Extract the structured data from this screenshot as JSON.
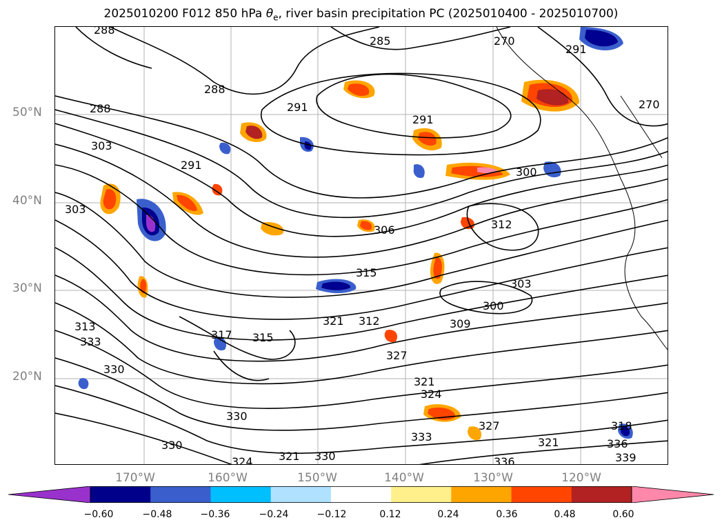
{
  "title": {
    "prefix": "2025010200 F012 850 hPa ",
    "symbol": "θ",
    "subscript": "e",
    "suffix": ", river basin precipitation PC (2025010400 - 2025010700)"
  },
  "map": {
    "lat_labels": [
      "50°N",
      "40°N",
      "30°N",
      "20°N"
    ],
    "lon_labels": [
      "170°W",
      "160°W",
      "150°W",
      "140°W",
      "130°W",
      "120°W"
    ],
    "contour_labels": [
      "288",
      "285",
      "270",
      "288",
      "291",
      "291",
      "270",
      "288",
      "291",
      "300",
      "303",
      "303",
      "291",
      "306",
      "312",
      "315",
      "303",
      "300",
      "309",
      "321",
      "312",
      "313",
      "333",
      "330",
      "317",
      "315",
      "327",
      "324",
      "321",
      "330",
      "333",
      "330",
      "324",
      "321",
      "336",
      "339",
      "318",
      "336",
      "327",
      "321",
      "330"
    ],
    "colors": {
      "contour": "#000000",
      "grid": "#7f7f7f",
      "neg_strong": "#000090",
      "neg_med": "#3a5fcd",
      "neg_light": "#00bfff",
      "pos_light": "#ffa500",
      "pos_med": "#ff4500",
      "pos_strong": "#b22222",
      "pos_extreme": "#ff88aa"
    }
  },
  "colorbar": {
    "colors": [
      "#9932cc",
      "#00008b",
      "#3a5fcd",
      "#00bfff",
      "#b0e2ff",
      "#ffffff",
      "#fff08c",
      "#ffa500",
      "#ff4500",
      "#b22222",
      "#ff88aa"
    ],
    "ticks": [
      "−0.60",
      "−0.48",
      "−0.36",
      "−0.24",
      "−0.12",
      "0.12",
      "0.24",
      "0.36",
      "0.48",
      "0.60"
    ]
  }
}
